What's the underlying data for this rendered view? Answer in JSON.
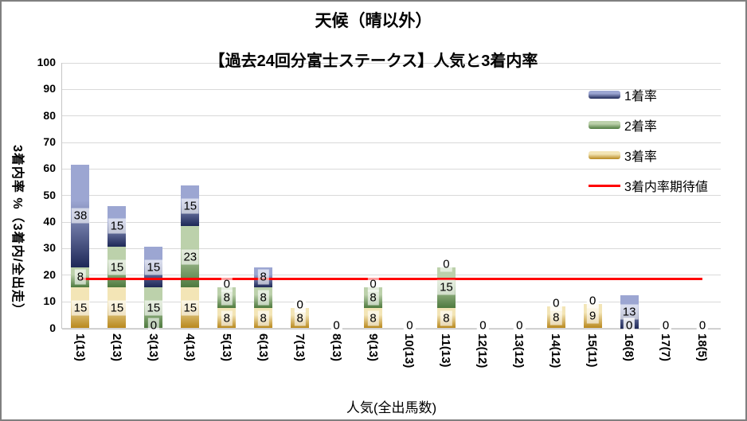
{
  "title": "天候（晴以外）",
  "subtitle": "【過去24回分富士ステークス】人気と3着内率",
  "y_axis": {
    "title": "3着内率 %（3着内/全出走）",
    "ticks": [
      0,
      10,
      20,
      30,
      40,
      50,
      60,
      70,
      80,
      90,
      100
    ],
    "min": 0,
    "max": 100
  },
  "x_axis": {
    "title": "人気(全出馬数)"
  },
  "legend": {
    "position": "top-right",
    "items": [
      {
        "label": "1着率",
        "swatch": "bar-blue"
      },
      {
        "label": "2着率",
        "swatch": "bar-green"
      },
      {
        "label": "3着率",
        "swatch": "bar-gold"
      },
      {
        "label": "3着内率期待値",
        "swatch": "line-red"
      }
    ]
  },
  "colors": {
    "grid": "#d9d9d9",
    "axis": "#c6c6c6",
    "border": "#808080",
    "text": "#000000",
    "expected_line": "#ff0000"
  },
  "chart_data": {
    "type": "bar",
    "stacked": true,
    "grid": true,
    "legend_position": "top-right",
    "ylim": [
      0,
      100
    ],
    "categories": [
      "1(13)",
      "2(13)",
      "3(13)",
      "4(13)",
      "5(13)",
      "6(13)",
      "7(13)",
      "8(13)",
      "9(13)",
      "10(13)",
      "11(13)",
      "12(12)",
      "13(12)",
      "14(12)",
      "15(11)",
      "16(8)",
      "17(7)",
      "18(5)"
    ],
    "series": [
      {
        "name": "3着率",
        "stack_order": "bottom",
        "color_light": "#f3e5b6",
        "color_dark": "#b9891e",
        "labels": [
          "15",
          "15",
          "0",
          "15",
          "8",
          "8",
          "8",
          "0",
          "8",
          "0",
          "8",
          "0",
          "0",
          "8",
          "9",
          "0",
          "0",
          "0"
        ],
        "values": [
          15.38,
          15.38,
          0,
          15.38,
          7.69,
          7.69,
          7.69,
          0,
          7.69,
          0,
          7.69,
          0,
          0,
          8.33,
          9.09,
          0,
          0,
          0
        ]
      },
      {
        "name": "2着率",
        "stack_order": "middle",
        "color_light": "#bcd1ab",
        "color_dark": "#4e7a3e",
        "labels": [
          "8",
          "15",
          "15",
          "23",
          "8",
          "8",
          "0",
          "0",
          "8",
          "0",
          "15",
          "0",
          "0",
          "0",
          "0",
          "0",
          "0",
          "0"
        ],
        "values": [
          7.69,
          15.38,
          15.38,
          23.08,
          7.69,
          7.69,
          0,
          0,
          7.69,
          0,
          15.38,
          0,
          0,
          0,
          0,
          0,
          0,
          0
        ]
      },
      {
        "name": "1着率",
        "stack_order": "top",
        "color_light": "#9ca6d2",
        "color_dark": "#1e2857",
        "labels": [
          "38",
          "15",
          "15",
          "15",
          "0",
          "8",
          "0",
          "0",
          "0",
          "0",
          "0",
          "0",
          "0",
          "0",
          "0",
          "13",
          "0",
          "0"
        ],
        "values": [
          38.46,
          15.38,
          15.38,
          15.38,
          0,
          7.69,
          0,
          0,
          0,
          0,
          0,
          0,
          0,
          0,
          0,
          12.5,
          0,
          0
        ]
      }
    ],
    "line_series": {
      "name": "3着内率期待値",
      "color": "#ff0000",
      "value": 18.6
    }
  }
}
